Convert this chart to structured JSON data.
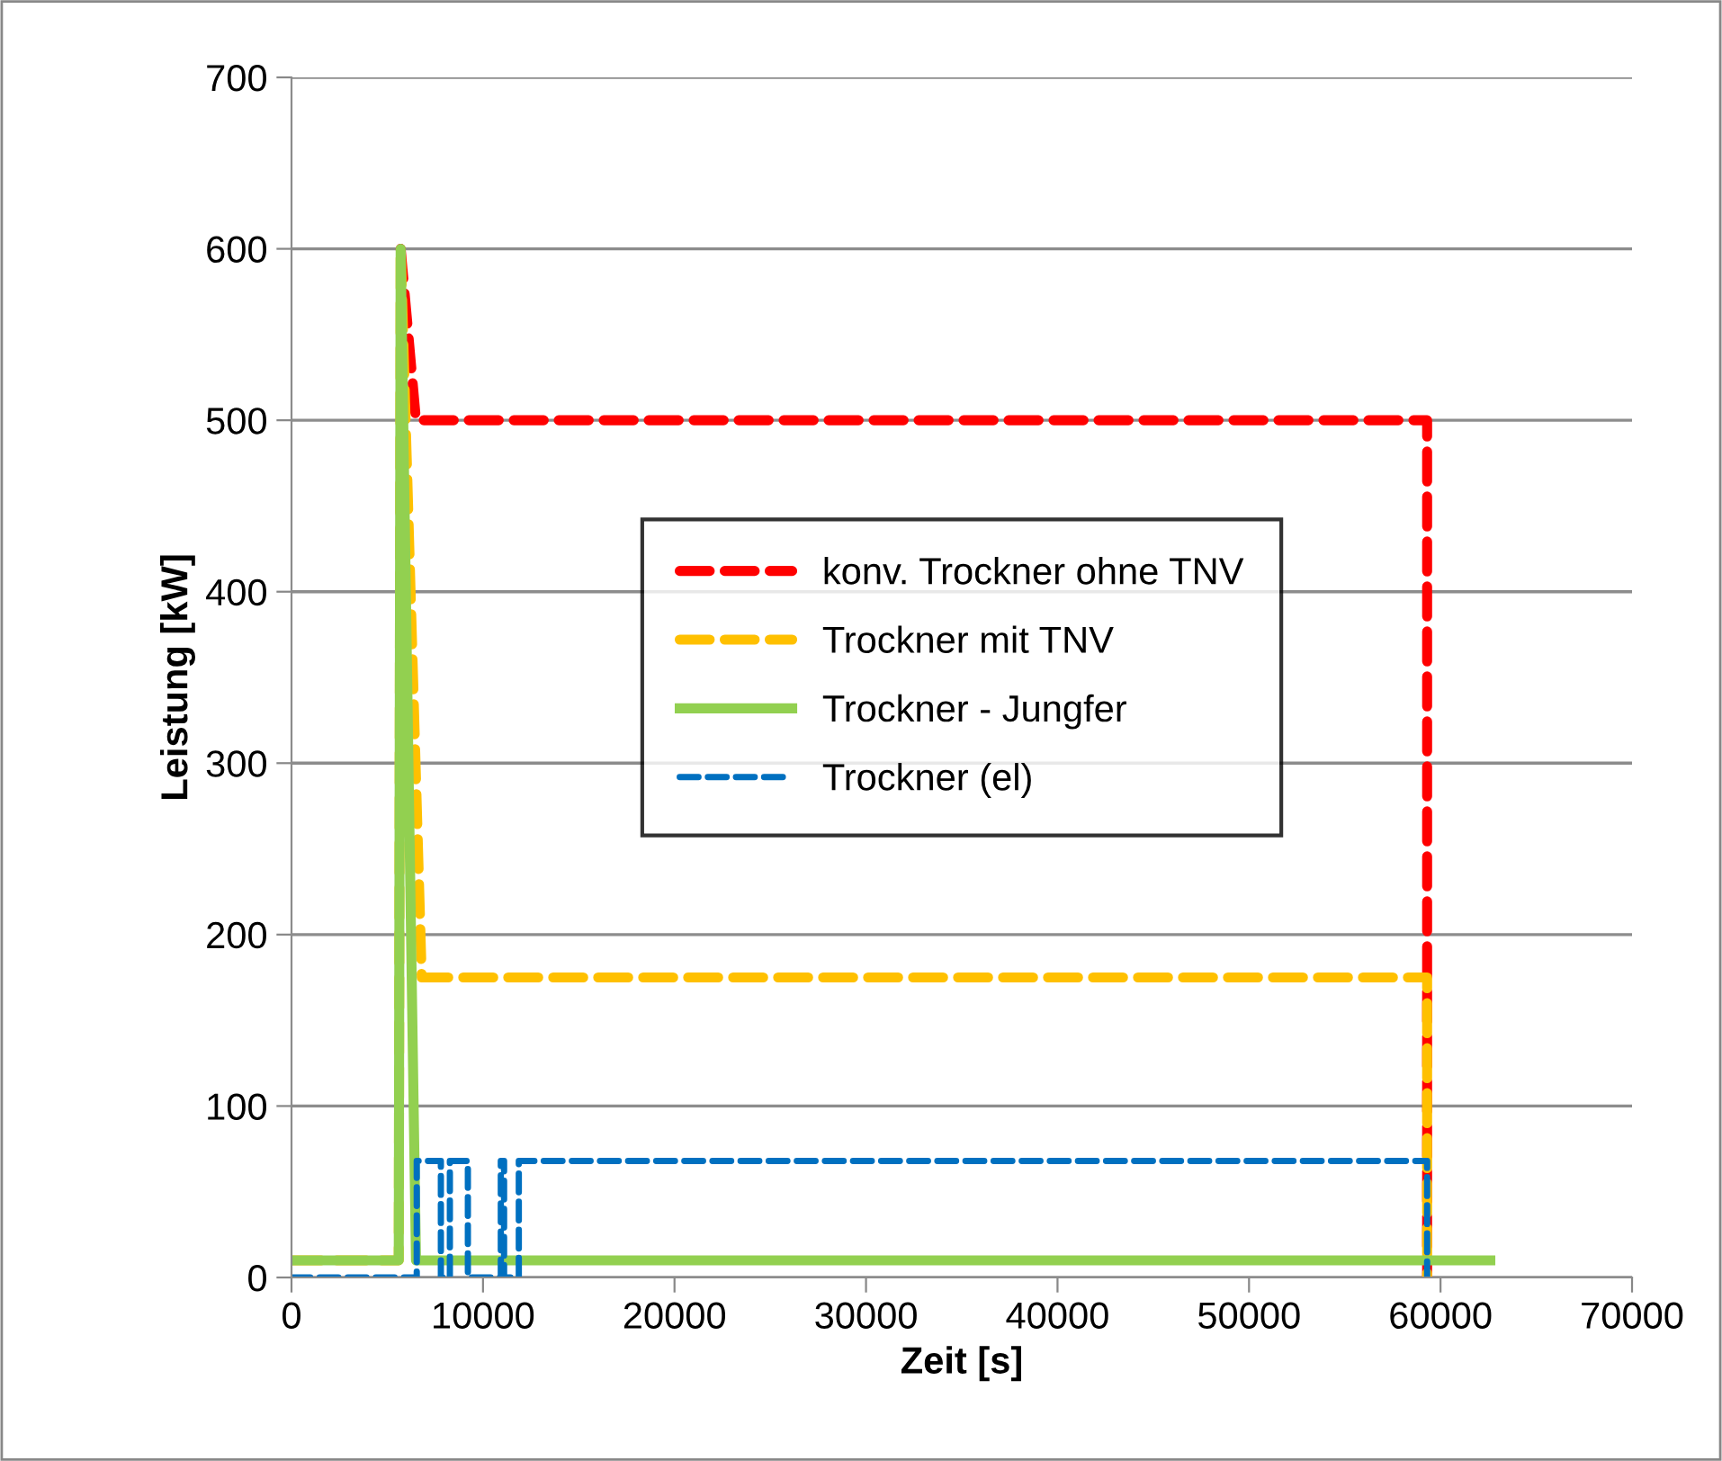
{
  "chart_data": {
    "type": "line",
    "xlabel": "Zeit [s]",
    "ylabel": "Leistung [kW]",
    "xlim": [
      0,
      70000
    ],
    "xticks": [
      0,
      10000,
      20000,
      30000,
      40000,
      50000,
      60000,
      70000
    ],
    "ylim": [
      0,
      700
    ],
    "yticks": [
      0,
      100,
      200,
      300,
      400,
      500,
      600,
      700
    ],
    "grid": "y",
    "legend": "center",
    "marker": "none",
    "series": [
      {
        "name": "konv. Trockner ohne TNV",
        "color": "#ff0000",
        "line_style": "dashed",
        "x": [
          5700,
          6500,
          59300,
          59300
        ],
        "values": [
          600,
          500,
          500,
          0
        ]
      },
      {
        "name": "Trockner mit TNV",
        "color": "#ffc000",
        "line_style": "dashed",
        "x": [
          0,
          5600,
          5700,
          6800,
          59300,
          59300
        ],
        "values": [
          10,
          10,
          600,
          175,
          175,
          0
        ]
      },
      {
        "name": "Trockner - Jungfer",
        "color": "#92d050",
        "line_style": "solid",
        "x": [
          0,
          5600,
          5700,
          6500,
          62600
        ],
        "values": [
          10,
          10,
          600,
          10,
          10
        ]
      },
      {
        "name": "Trockner (el)",
        "color": "#0070c0",
        "line_style": "dotted",
        "x": [
          0,
          6540,
          6540,
          7800,
          7800,
          8270,
          8270,
          9210,
          9210,
          10930,
          10930,
          11100,
          11100,
          11870,
          11870,
          59300,
          59300
        ],
        "values": [
          0,
          0,
          68,
          68,
          0,
          0,
          68,
          68,
          0,
          0,
          68,
          68,
          0,
          0,
          68,
          68,
          0
        ]
      }
    ]
  }
}
